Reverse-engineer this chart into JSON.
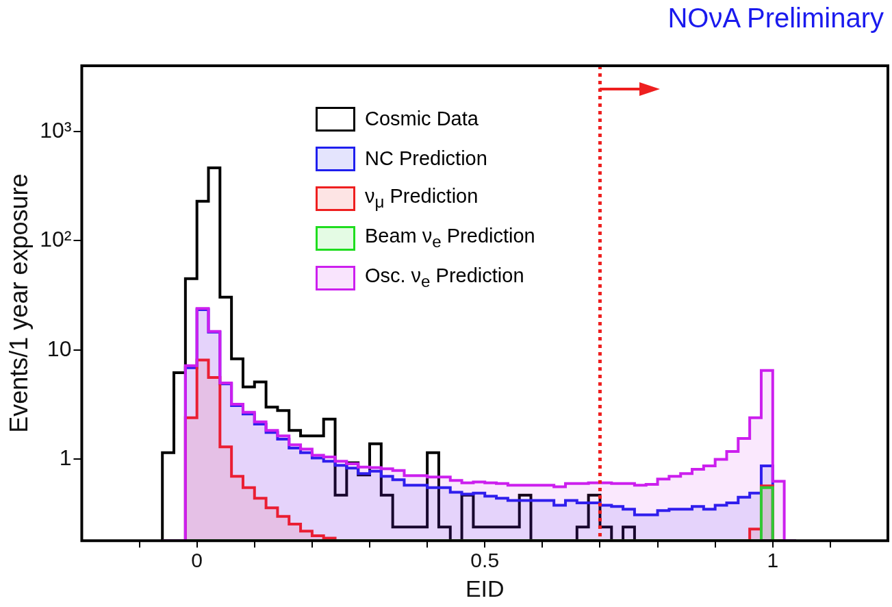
{
  "chart_data": {
    "type": "histogram",
    "title": "NOνA Preliminary",
    "xlabel": "EID",
    "ylabel": "Events/1 year exposure",
    "log": true,
    "legend": "top",
    "bins": [
      -0.06,
      -0.04,
      -0.02,
      0,
      0.02,
      0.04,
      0.06,
      0.08,
      0.1,
      0.12,
      0.14,
      0.16,
      0.18,
      0.2,
      0.22,
      0.24,
      0.26,
      0.28,
      0.3,
      0.32,
      0.34,
      0.36,
      0.38,
      0.4,
      0.42,
      0.44,
      0.46,
      0.48,
      0.5,
      0.52,
      0.54,
      0.56,
      0.58,
      0.6,
      0.62,
      0.64,
      0.66,
      0.68,
      0.7,
      0.72,
      0.74,
      0.76,
      0.78,
      0.8,
      0.82,
      0.84,
      0.86,
      0.88,
      0.9,
      0.92,
      0.94,
      0.96,
      0.98,
      1,
      1.02,
      1.04
    ],
    "xlim": [
      -0.2,
      1.2
    ],
    "xticks": [
      {
        "value": -0.1,
        "label": null
      },
      0,
      {
        "value": 0.1,
        "label": null
      },
      {
        "value": 0.2,
        "label": null
      },
      {
        "value": 0.3,
        "label": null
      },
      {
        "value": 0.4,
        "label": null
      },
      0.5,
      {
        "value": 0.6,
        "label": null
      },
      {
        "value": 0.7,
        "label": null
      },
      {
        "value": 0.8,
        "label": null
      },
      {
        "value": 0.9,
        "label": null
      },
      1,
      {
        "value": 1.1,
        "label": null
      }
    ],
    "ylim": [
      0.18,
      4000
    ],
    "yticks": [
      1,
      10,
      {
        "value": 100,
        "label": "10²"
      },
      {
        "value": 1000,
        "label": "10³"
      }
    ],
    "series": [
      {
        "name": "Cosmic Data",
        "color": "#000000",
        "values": [
          1.15,
          6.2,
          45,
          230,
          465,
          30.5,
          8.3,
          4.6,
          5.1,
          3.0,
          2.8,
          1.84,
          1.64,
          1.64,
          2.33,
          0.47,
          0.93,
          0.72,
          1.39,
          0.47,
          0.24,
          0.24,
          0.24,
          1.15,
          0.24,
          null,
          0.47,
          0.24,
          0.24,
          0.24,
          0.24,
          0.47,
          null,
          null,
          null,
          null,
          0.24,
          0.47,
          0.24,
          null,
          0.24,
          null,
          null,
          null,
          null,
          null,
          null,
          null,
          null,
          null,
          null,
          null,
          null,
          null,
          null
        ]
      },
      {
        "name": "NC Prediction",
        "color": "#1f1fee",
        "values": [
          null,
          null,
          6.9,
          23.4,
          14.6,
          4.9,
          3.1,
          2.6,
          2.1,
          1.76,
          1.53,
          1.27,
          1.15,
          1.03,
          0.96,
          0.88,
          0.83,
          0.74,
          0.78,
          0.7,
          0.65,
          0.58,
          0.58,
          0.55,
          0.55,
          0.5,
          0.48,
          0.49,
          0.46,
          0.44,
          0.42,
          0.42,
          0.42,
          0.42,
          0.38,
          0.42,
          0.4,
          0.4,
          0.38,
          0.37,
          0.35,
          0.31,
          0.31,
          0.34,
          0.35,
          0.35,
          0.37,
          0.35,
          0.38,
          0.4,
          0.45,
          0.49,
          0.87,
          null,
          null
        ]
      },
      {
        "name": "ν$_{μ}$ Prediction",
        "color": "#ee1f1f",
        "values": [
          null,
          null,
          2.4,
          8.1,
          5.6,
          1.3,
          0.7,
          0.55,
          0.44,
          0.36,
          0.3,
          0.255,
          0.22,
          0.2,
          0.19,
          null,
          null,
          null,
          null,
          null,
          null,
          null,
          null,
          null,
          null,
          null,
          null,
          null,
          null,
          null,
          null,
          null,
          null,
          null,
          null,
          null,
          null,
          null,
          null,
          null,
          null,
          null,
          null,
          null,
          null,
          null,
          null,
          null,
          null,
          null,
          null,
          0.23,
          0.57,
          null,
          null
        ]
      },
      {
        "name": "Beam ν$_{e}$ Prediction",
        "color": "#1fdd1f",
        "values": [
          null,
          null,
          null,
          null,
          null,
          null,
          null,
          null,
          null,
          null,
          null,
          null,
          null,
          null,
          null,
          null,
          null,
          null,
          null,
          null,
          null,
          null,
          null,
          null,
          null,
          null,
          null,
          null,
          null,
          null,
          null,
          null,
          null,
          null,
          null,
          null,
          null,
          null,
          null,
          null,
          null,
          null,
          null,
          null,
          null,
          null,
          null,
          null,
          null,
          null,
          null,
          null,
          0.55,
          null,
          null
        ]
      },
      {
        "name": "Osc. ν$_{e}$ Prediction",
        "color": "#cc1fee",
        "values": [
          null,
          null,
          7.2,
          24,
          14.8,
          5.0,
          3.2,
          2.7,
          2.2,
          1.84,
          1.64,
          1.36,
          1.24,
          1.09,
          1.05,
          0.96,
          0.91,
          0.85,
          0.84,
          0.82,
          0.79,
          0.71,
          0.71,
          0.69,
          0.69,
          0.64,
          0.61,
          0.62,
          0.61,
          0.6,
          0.58,
          0.58,
          0.58,
          0.58,
          0.56,
          0.6,
          0.6,
          0.61,
          0.61,
          0.6,
          0.6,
          0.58,
          0.59,
          0.66,
          0.7,
          0.74,
          0.81,
          0.87,
          1.0,
          1.18,
          1.55,
          2.4,
          6.5,
          0.63,
          null
        ]
      }
    ],
    "ref_lines": [
      {
        "axis": "x",
        "value": 0.7,
        "color": "#ee1f1f",
        "line_style": "dotted"
      }
    ]
  }
}
